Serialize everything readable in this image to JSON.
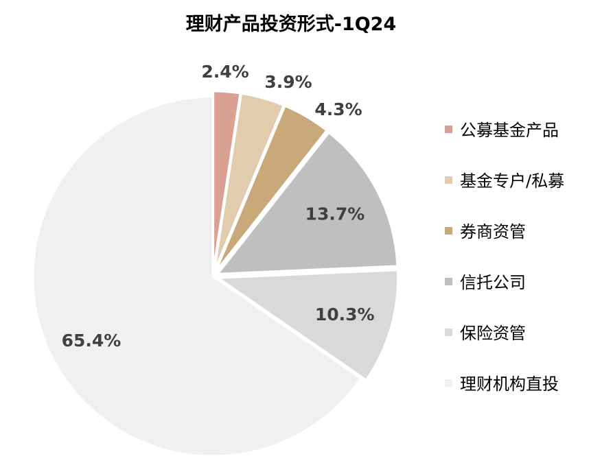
{
  "chart_data": {
    "type": "pie",
    "title": "理财产品投资形式-1Q24",
    "legend_position": "right",
    "slices": [
      {
        "label": "公募基金产品",
        "value": 2.4,
        "display": "2.4%",
        "color": "#d9a093"
      },
      {
        "label": "基金专户/私募",
        "value": 3.9,
        "display": "3.9%",
        "color": "#e1cdae"
      },
      {
        "label": "券商资管",
        "value": 4.3,
        "display": "4.3%",
        "color": "#c9a97a"
      },
      {
        "label": "信托公司",
        "value": 13.7,
        "display": "13.7%",
        "color": "#bfbfbf"
      },
      {
        "label": "保险资管",
        "value": 10.3,
        "display": "10.3%",
        "color": "#d9d9d9"
      },
      {
        "label": "理财机构直投",
        "value": 65.4,
        "display": "65.4%",
        "color": "#f0f0f0"
      }
    ]
  }
}
